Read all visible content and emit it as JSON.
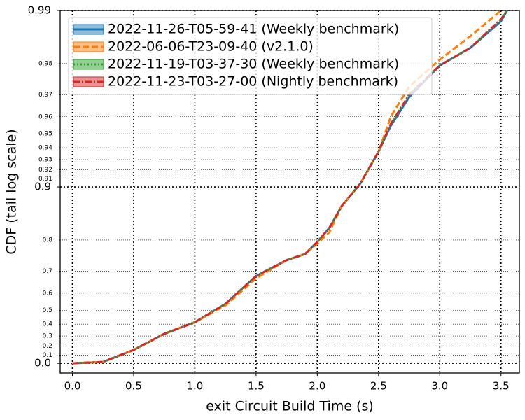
{
  "chart_data": {
    "type": "line",
    "xlabel": "exit Circuit Build Time (s)",
    "ylabel": "CDF (tail log scale)",
    "yscale": "tail-log",
    "xlim": [
      -0.1,
      3.65
    ],
    "ylim": [
      -0.135,
      0.99
    ],
    "xticks": [
      {
        "value": 0,
        "label": "0.0"
      },
      0.5,
      {
        "value": 1,
        "label": "1.0"
      },
      1.5,
      {
        "value": 2,
        "label": "2.0"
      },
      2.5,
      {
        "value": 3,
        "label": "3.0"
      },
      3.5
    ],
    "yticks": [
      {
        "value": 0,
        "label": "0.0"
      },
      0.9,
      0.99
    ],
    "yminorticks": [
      0.1,
      0.2,
      0.3,
      0.4,
      0.5,
      0.6,
      0.7,
      0.8,
      0.91,
      0.92,
      0.93,
      0.94,
      0.95,
      0.96,
      0.97,
      0.98
    ],
    "grid": true,
    "legend": "upper left",
    "x": [
      0.0,
      0.25,
      0.5,
      0.75,
      1.0,
      1.25,
      1.5,
      1.75,
      1.9,
      2.0,
      2.1,
      2.2,
      2.35,
      2.5,
      2.6,
      2.75,
      3.0,
      3.25,
      3.5,
      3.55
    ],
    "series": [
      {
        "name": "2022-11-26-T05-59-41 (Weekly benchmark)",
        "color": "#1f77b4",
        "dash": "solid",
        "values": [
          0,
          0.018,
          0.16,
          0.32,
          0.415,
          0.54,
          0.68,
          0.74,
          0.76,
          0.795,
          0.83,
          0.872,
          0.904,
          0.937,
          0.955,
          0.969,
          0.9795,
          0.9837,
          0.9885,
          0.99
        ]
      },
      {
        "name": "2022-06-06-T23-09-40 (v2.1.0)",
        "color": "#ff7f0e",
        "dash": "dashed",
        "values": [
          0,
          0.018,
          0.16,
          0.32,
          0.415,
          0.53,
          0.67,
          0.74,
          0.76,
          0.79,
          0.82,
          0.872,
          0.904,
          0.937,
          0.96,
          0.973,
          0.981,
          0.986,
          0.99,
          null
        ]
      },
      {
        "name": "2022-11-19-T03-37-30 (Weekly benchmark)",
        "color": "#2ca02c",
        "dash": "dotted",
        "values": [
          0,
          0.018,
          0.16,
          0.32,
          0.415,
          0.54,
          0.68,
          0.74,
          0.76,
          0.795,
          0.83,
          0.872,
          0.904,
          0.937,
          0.956,
          0.97,
          0.9795,
          0.9837,
          0.9888,
          0.99
        ]
      },
      {
        "name": "2022-11-23-T03-27-00 (Nightly benchmark)",
        "color": "#d62728",
        "dash": "dashdot",
        "values": [
          0,
          0.018,
          0.16,
          0.32,
          0.415,
          0.54,
          0.68,
          0.74,
          0.76,
          0.795,
          0.83,
          0.872,
          0.904,
          0.937,
          0.956,
          0.97,
          0.9795,
          0.9837,
          0.9888,
          0.99
        ]
      }
    ]
  }
}
